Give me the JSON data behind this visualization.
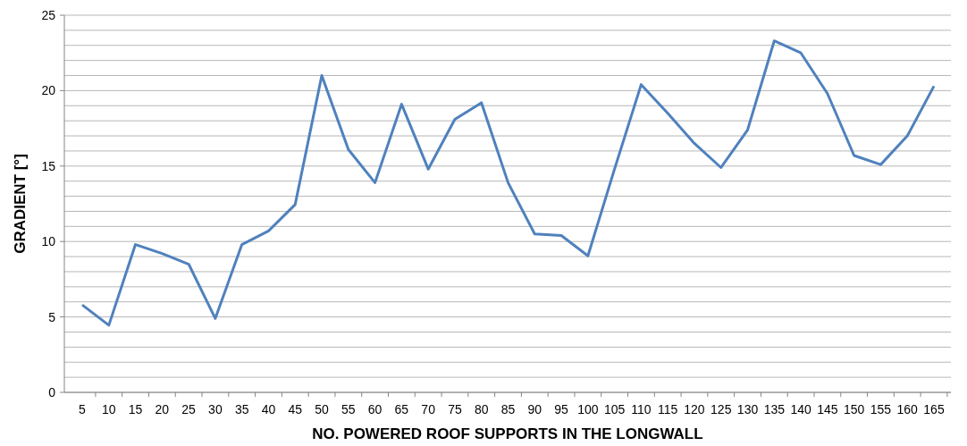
{
  "chart_data": {
    "type": "line",
    "xlabel": "NO. POWERED ROOF SUPPORTS IN THE LONGWALL",
    "ylabel": "GRADIENT [°]",
    "categories": [
      "5",
      "10",
      "15",
      "20",
      "25",
      "30",
      "35",
      "40",
      "45",
      "50",
      "55",
      "60",
      "65",
      "70",
      "75",
      "80",
      "85",
      "90",
      "95",
      "100",
      "105",
      "110",
      "115",
      "120",
      "125",
      "130",
      "135",
      "140",
      "145",
      "150",
      "155",
      "160",
      "165"
    ],
    "series": [
      {
        "color": "#4f81bd",
        "values": [
          5.8,
          4.45,
          9.8,
          9.2,
          8.5,
          4.9,
          9.8,
          10.7,
          12.45,
          21.0,
          16.1,
          13.9,
          19.1,
          14.8,
          18.1,
          19.2,
          13.9,
          10.5,
          10.4,
          9.05,
          14.8,
          20.4,
          18.5,
          16.5,
          14.9,
          17.4,
          23.3,
          22.5,
          19.8,
          15.7,
          15.1,
          17.0,
          20.3
        ]
      }
    ],
    "ylim": [
      0,
      25
    ],
    "yticks": [
      0,
      {
        "value": 1,
        "label": null
      },
      {
        "value": 2,
        "label": null
      },
      {
        "value": 3,
        "label": null
      },
      {
        "value": 4,
        "label": null
      },
      5,
      {
        "value": 6,
        "label": null
      },
      {
        "value": 7,
        "label": null
      },
      {
        "value": 8,
        "label": null
      },
      {
        "value": 9,
        "label": null
      },
      10,
      {
        "value": 11,
        "label": null
      },
      {
        "value": 12,
        "label": null
      },
      {
        "value": 13,
        "label": null
      },
      {
        "value": 14,
        "label": null
      },
      15,
      {
        "value": 16,
        "label": null
      },
      {
        "value": 17,
        "label": null
      },
      {
        "value": 18,
        "label": null
      },
      {
        "value": 19,
        "label": null
      },
      20,
      {
        "value": 21,
        "label": null
      },
      {
        "value": 22,
        "label": null
      },
      {
        "value": 23,
        "label": null
      },
      {
        "value": 24,
        "label": null
      },
      25
    ],
    "grid": "y",
    "marker": "none",
    "line_style": "solid"
  }
}
